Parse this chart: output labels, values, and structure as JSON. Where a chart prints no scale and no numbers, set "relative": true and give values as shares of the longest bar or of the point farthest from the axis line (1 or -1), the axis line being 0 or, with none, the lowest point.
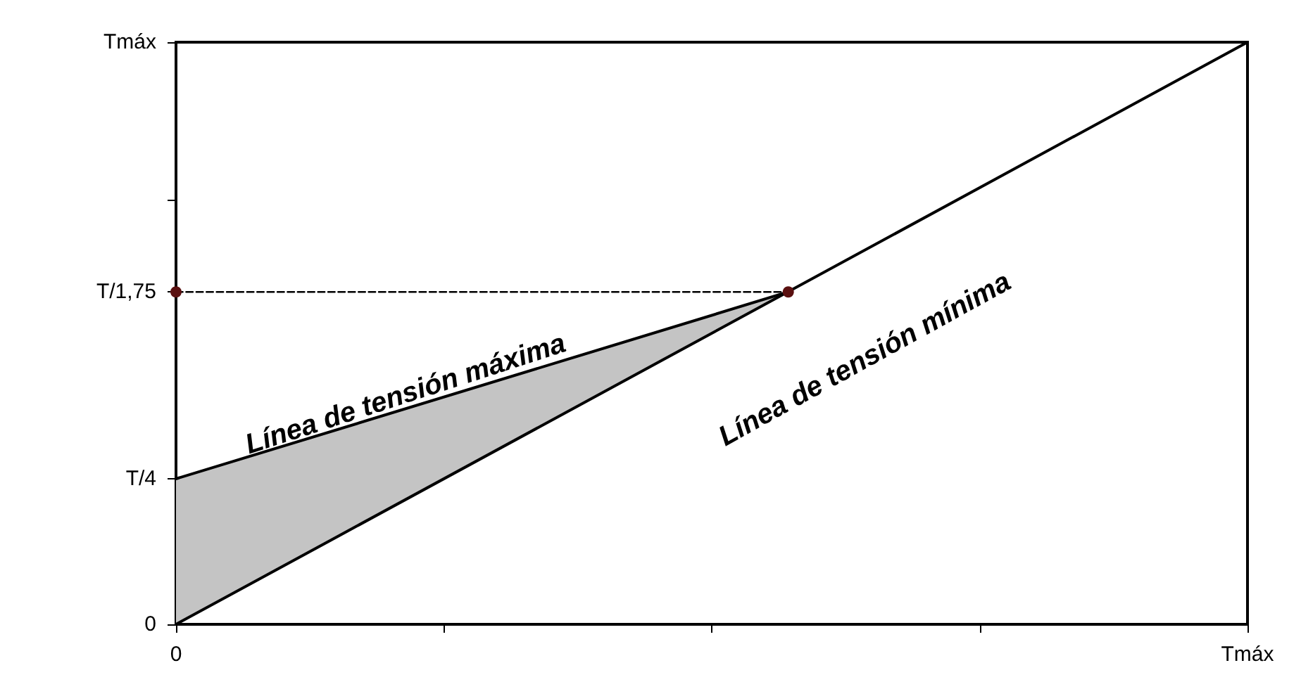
{
  "chart_data": {
    "type": "line",
    "relative": true,
    "categories": [
      "0",
      null,
      null,
      null,
      null,
      null,
      null,
      null,
      null,
      null,
      null,
      null,
      null,
      null,
      null,
      null,
      null,
      null,
      null,
      null,
      null,
      null,
      null,
      null,
      null,
      null,
      null,
      null,
      "Tmáx"
    ],
    "series": [
      {
        "color": "#000000",
        "values": [
          0.25,
          null,
          null,
          null,
          null,
          null,
          null,
          null,
          null,
          null,
          null,
          null,
          null,
          null,
          null,
          null,
          0.571,
          null,
          null,
          null,
          null,
          null,
          null,
          null,
          null,
          null,
          null,
          null,
          null
        ],
        "lower": [
          0,
          null,
          null,
          null,
          null,
          null,
          null,
          null,
          null,
          null,
          null,
          null,
          null,
          null,
          null,
          null,
          0.571,
          null,
          null,
          null,
          null,
          null,
          null,
          null,
          null,
          null,
          null,
          null,
          null
        ],
        "upper": [
          0.25,
          null,
          null,
          null,
          null,
          null,
          null,
          null,
          null,
          null,
          null,
          null,
          null,
          null,
          null,
          null,
          0.571,
          null,
          null,
          null,
          null,
          null,
          null,
          null,
          null,
          null,
          null,
          null,
          null
        ],
        "marker": "none"
      },
      {
        "color": "#000000",
        "values": [
          0,
          null,
          null,
          null,
          null,
          null,
          null,
          null,
          null,
          null,
          null,
          null,
          null,
          null,
          null,
          null,
          null,
          null,
          null,
          null,
          null,
          null,
          null,
          null,
          null,
          null,
          null,
          null,
          1
        ],
        "marker": "none"
      },
      {
        "color": "#5a1010",
        "values": [
          0.571,
          null,
          null,
          null,
          null,
          null,
          null,
          null,
          null,
          null,
          null,
          null,
          null,
          null,
          null,
          null,
          0.571,
          null,
          null,
          null,
          null,
          null,
          null,
          null,
          null,
          null,
          null,
          null,
          null
        ],
        "line_style": "dashed",
        "marker": "circle"
      }
    ],
    "annotations": [
      "Línea de tensión máxima",
      "Línea de tensión mínima",
      "0",
      "T/4",
      "T/1,75",
      "Tmáx"
    ],
    "grid": false
  }
}
